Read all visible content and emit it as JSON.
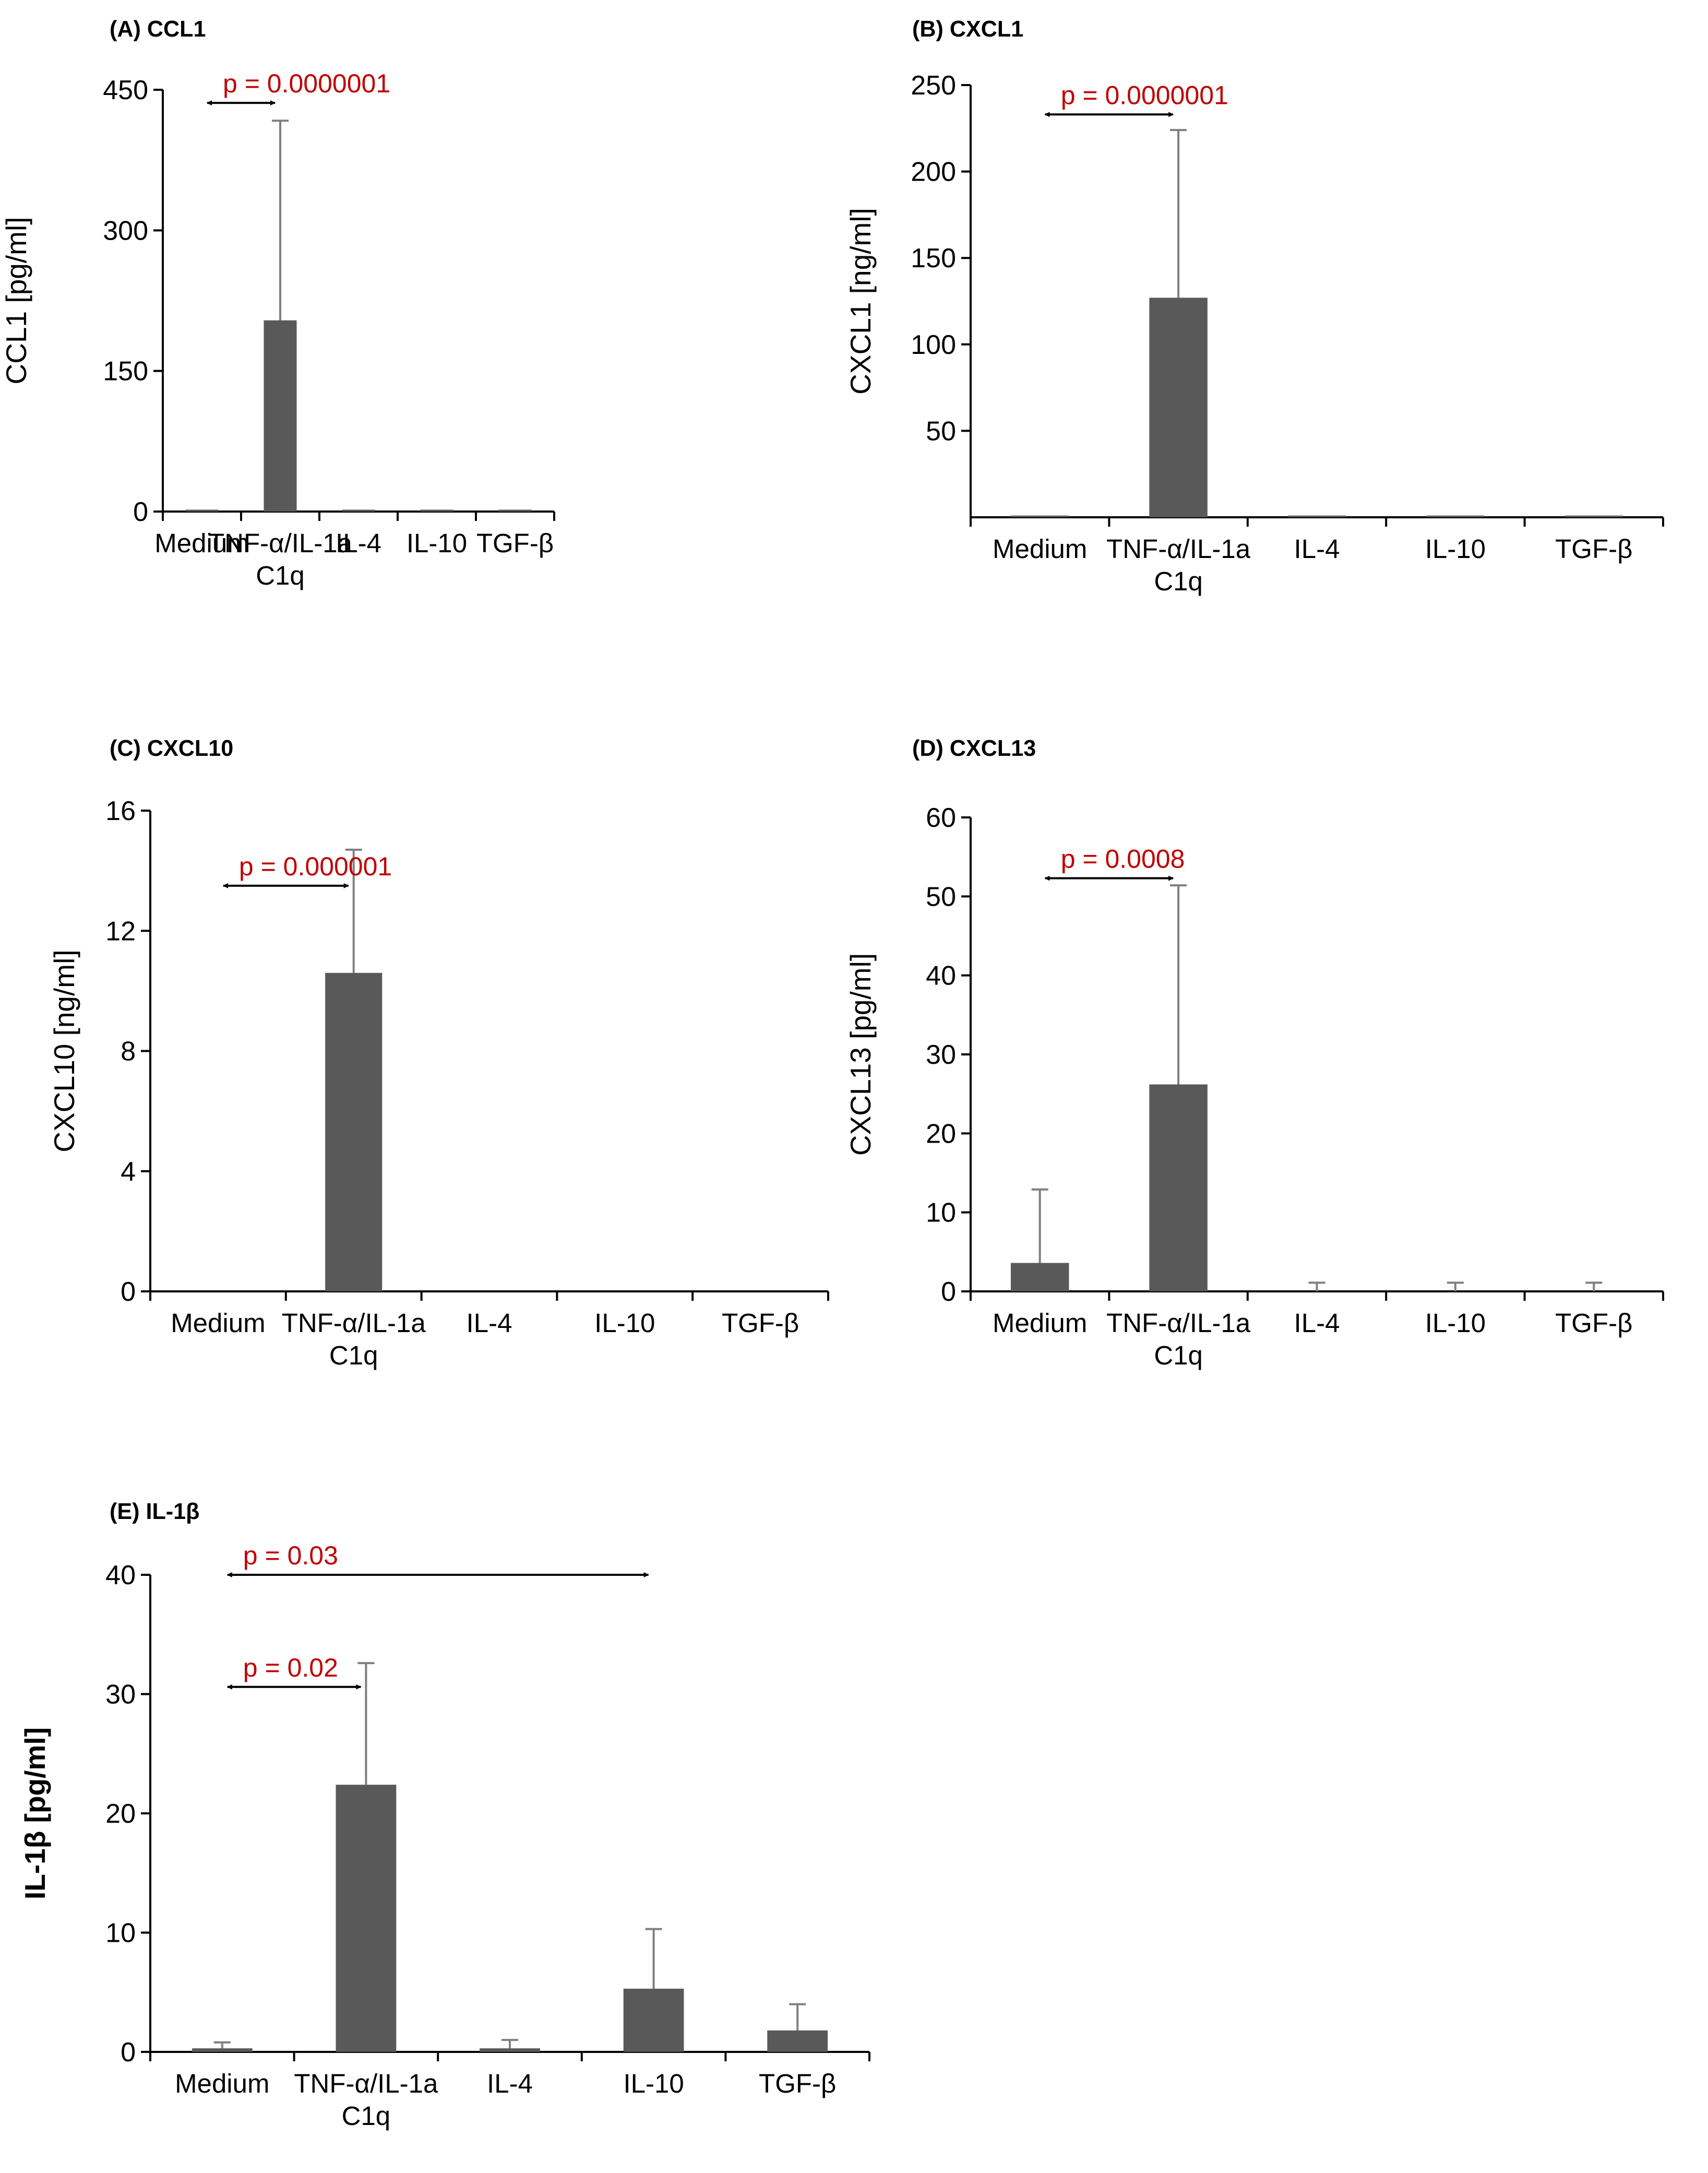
{
  "colors": {
    "bar": "#595959",
    "axis": "#000000",
    "error": "#7f7f7f",
    "annotation": "#c00000"
  },
  "chart_data": [
    {
      "id": "A",
      "type": "bar",
      "title": "(A) CCL1",
      "ylabel": "CCL1 [pg/ml]",
      "ylabel_bold": false,
      "categories": [
        "Medium",
        "TNF-α/IL-1a|C1q",
        "IL-4",
        "IL-10",
        "TGF-β"
      ],
      "values": [
        2,
        204,
        2,
        2,
        2
      ],
      "errors": [
        0,
        213,
        0,
        0,
        0
      ],
      "ylim": [
        0,
        450
      ],
      "yticks": [
        0,
        150,
        300,
        450
      ],
      "annotations": [
        {
          "text": "p = 0.0000001",
          "from": 0,
          "to": 1,
          "y": 436
        }
      ]
    },
    {
      "id": "B",
      "type": "bar",
      "title": "(B) CXCL1",
      "ylabel": "CXCL1 [ng/ml]",
      "ylabel_bold": false,
      "categories": [
        "Medium",
        "TNF-α/IL-1a|C1q",
        "IL-4",
        "IL-10",
        "TGF-β"
      ],
      "values": [
        1,
        127,
        1,
        1,
        1
      ],
      "errors": [
        0,
        97,
        0,
        0,
        0
      ],
      "ylim": [
        0,
        250
      ],
      "yticks": [
        50,
        100,
        150,
        200,
        250
      ],
      "annotations": [
        {
          "text": "p = 0.0000001",
          "from": 0,
          "to": 1,
          "y": 233
        }
      ]
    },
    {
      "id": "C",
      "type": "bar",
      "title": "(C) CXCL10",
      "ylabel": "CXCL10 [ng/ml]",
      "ylabel_bold": false,
      "categories": [
        "Medium",
        "TNF-α/IL-1a|C1q",
        "IL-4",
        "IL-10",
        "TGF-β"
      ],
      "values": [
        0,
        10.6,
        0,
        0,
        0
      ],
      "errors": [
        0,
        4.1,
        0,
        0,
        0
      ],
      "ylim": [
        0,
        16
      ],
      "yticks": [
        0,
        4,
        8,
        12,
        16
      ],
      "annotations": [
        {
          "text": "p = 0.000001",
          "from": 0,
          "to": 1,
          "y": 13.5
        }
      ]
    },
    {
      "id": "D",
      "type": "bar",
      "title": "(D) CXCL13",
      "ylabel": "CXCL13 [pg/ml]",
      "ylabel_bold": false,
      "categories": [
        "Medium",
        "TNF-α/IL-1a|C1q",
        "IL-4",
        "IL-10",
        "TGF-β"
      ],
      "values": [
        3.6,
        26.2,
        0,
        0,
        0
      ],
      "errors": [
        9.3,
        25.2,
        1.1,
        1.1,
        1.1
      ],
      "ylim": [
        0,
        60
      ],
      "yticks": [
        0,
        10,
        20,
        30,
        40,
        50,
        60
      ],
      "annotations": [
        {
          "text": "p = 0.0008",
          "from": 0,
          "to": 1,
          "y": 52.3
        }
      ]
    },
    {
      "id": "E",
      "type": "bar",
      "title": "(E) IL-1β",
      "ylabel": "IL-1β [pg/ml]",
      "ylabel_bold": true,
      "categories": [
        "Medium",
        "TNF-α/IL-1a|C1q",
        "IL-4",
        "IL-10",
        "TGF-β"
      ],
      "values": [
        0.3,
        22.4,
        0.3,
        5.3,
        1.8
      ],
      "errors": [
        0.5,
        10.2,
        0.7,
        5.0,
        2.2
      ],
      "ylim": [
        0,
        40
      ],
      "yticks": [
        0,
        10,
        20,
        30,
        40
      ],
      "annotations": [
        {
          "text": "p = 0.02",
          "from": 0,
          "to": 1,
          "y": 30.6
        },
        {
          "text": "p = 0.03",
          "from": 0,
          "to": 3,
          "y": 40
        }
      ]
    }
  ]
}
